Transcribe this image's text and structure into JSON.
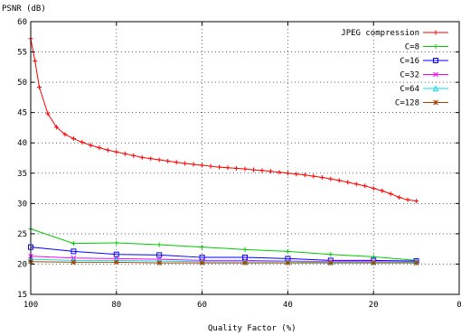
{
  "chart_data": {
    "type": "line",
    "ylabel": "PSNR (dB)",
    "xlabel": "Quality Factor (%)",
    "xlim": [
      100,
      0
    ],
    "ylim": [
      15,
      60
    ],
    "x_ticks": [
      100,
      80,
      60,
      40,
      20,
      0
    ],
    "x_tick_labels": [
      "100",
      "80",
      "60",
      "40",
      "20",
      "0"
    ],
    "y_ticks": [
      15,
      20,
      25,
      30,
      35,
      40,
      45,
      50,
      55,
      60
    ],
    "y_tick_labels": [
      "15",
      "20",
      "25",
      "30",
      "35",
      "40",
      "45",
      "50",
      "55",
      "60"
    ],
    "grid": true,
    "legend_position": "top-right",
    "series": [
      {
        "name": "JPEG compression",
        "color": "#ff0000",
        "marker": "plus",
        "x": [
          100,
          99,
          98,
          96,
          94,
          92,
          90,
          88,
          86,
          84,
          82,
          80,
          78,
          76,
          74,
          72,
          70,
          68,
          66,
          64,
          62,
          60,
          58,
          56,
          54,
          52,
          50,
          48,
          46,
          44,
          42,
          40,
          38,
          36,
          34,
          32,
          30,
          28,
          26,
          24,
          22,
          20,
          18,
          16,
          14,
          12,
          10
        ],
        "y": [
          57.2,
          53.5,
          49.2,
          44.8,
          42.6,
          41.4,
          40.7,
          40.1,
          39.6,
          39.2,
          38.8,
          38.5,
          38.2,
          37.9,
          37.6,
          37.4,
          37.2,
          37.0,
          36.8,
          36.6,
          36.45,
          36.3,
          36.15,
          36.0,
          35.9,
          35.8,
          35.7,
          35.55,
          35.45,
          35.3,
          35.15,
          35.0,
          34.85,
          34.7,
          34.5,
          34.3,
          34.05,
          33.8,
          33.5,
          33.2,
          32.9,
          32.5,
          32.1,
          31.6,
          31.0,
          30.6,
          30.4
        ]
      },
      {
        "name": "C=8",
        "color": "#00cc00",
        "marker": "plus",
        "x": [
          100,
          90,
          80,
          70,
          60,
          50,
          40,
          30,
          20,
          10
        ],
        "y": [
          25.8,
          23.4,
          23.5,
          23.2,
          22.8,
          22.4,
          22.1,
          21.6,
          21.2,
          20.6
        ]
      },
      {
        "name": "C=16",
        "color": "#0000ff",
        "marker": "square",
        "x": [
          100,
          90,
          80,
          70,
          60,
          50,
          40,
          30,
          20,
          10
        ],
        "y": [
          22.8,
          22.1,
          21.6,
          21.5,
          21.1,
          21.1,
          20.9,
          20.6,
          20.6,
          20.5
        ]
      },
      {
        "name": "C=32",
        "color": "#ff00ff",
        "marker": "x",
        "x": [
          100,
          90,
          80,
          70,
          60,
          50,
          40,
          30,
          20,
          10
        ],
        "y": [
          21.3,
          21.0,
          20.9,
          20.8,
          20.6,
          20.6,
          20.5,
          20.4,
          20.4,
          20.3
        ]
      },
      {
        "name": "C=64",
        "color": "#00e5e5",
        "marker": "triangle",
        "x": [
          100,
          90,
          80,
          70,
          60,
          50,
          40,
          30,
          20,
          10
        ],
        "y": [
          20.8,
          20.6,
          20.6,
          20.5,
          20.4,
          20.4,
          20.4,
          20.3,
          20.3,
          20.3
        ]
      },
      {
        "name": "C=128",
        "color": "#aa4400",
        "marker": "star",
        "x": [
          100,
          90,
          80,
          70,
          60,
          50,
          40,
          30,
          20,
          10
        ],
        "y": [
          20.4,
          20.3,
          20.3,
          20.2,
          20.2,
          20.2,
          20.2,
          20.2,
          20.2,
          20.2
        ]
      }
    ]
  }
}
